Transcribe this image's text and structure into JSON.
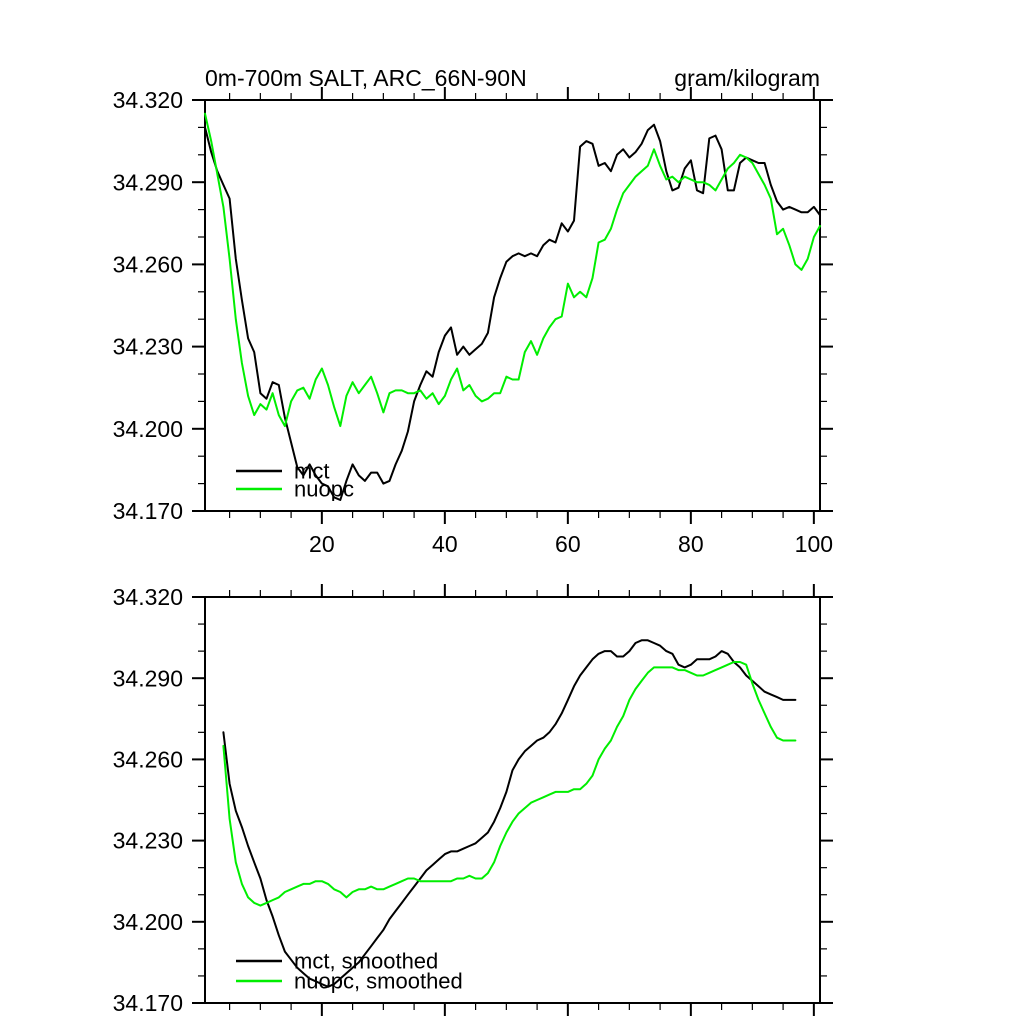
{
  "figure": {
    "background": "#ffffff",
    "accent_green": "#00ee00",
    "accent_black": "#000000"
  },
  "chart_data": [
    {
      "type": "line",
      "title": "0m-700m SALT, ARC_66N-90N",
      "units": "gram/kilogram",
      "xlabel": "",
      "ylabel": "",
      "xlim": [
        1,
        101
      ],
      "ylim": [
        34.17,
        34.32
      ],
      "grid": false,
      "legend_position": "lower-left-inside",
      "x_major_ticks": [
        20,
        40,
        60,
        80,
        100
      ],
      "x_tick_labels": [
        "20",
        "40",
        "60",
        "80",
        "100"
      ],
      "x_minor_step": 5,
      "y_major_ticks": [
        34.17,
        34.2,
        34.23,
        34.26,
        34.29,
        34.32
      ],
      "y_tick_labels": [
        "34.170",
        "34.200",
        "34.230",
        "34.260",
        "34.290",
        "34.320"
      ],
      "y_minor_step": 0.01,
      "show_x_labels": true,
      "legend": [
        {
          "name": "mct",
          "color": "#000000"
        },
        {
          "name": "nuopc",
          "color": "#00ee00"
        }
      ],
      "series": [
        {
          "name": "mct",
          "color": "#000000",
          "x_start": 1,
          "x_step": 1,
          "values": [
            34.31,
            34.301,
            34.294,
            34.289,
            34.284,
            34.262,
            34.247,
            34.233,
            34.228,
            34.213,
            34.211,
            34.217,
            34.216,
            34.204,
            34.195,
            34.186,
            34.183,
            34.187,
            34.183,
            34.18,
            34.179,
            34.175,
            34.174,
            34.181,
            34.187,
            34.183,
            34.181,
            34.184,
            34.184,
            34.18,
            34.181,
            34.187,
            34.192,
            34.199,
            34.21,
            34.216,
            34.221,
            34.219,
            34.228,
            34.234,
            34.237,
            34.227,
            34.23,
            34.227,
            34.229,
            34.231,
            34.235,
            34.248,
            34.255,
            34.261,
            34.263,
            34.264,
            34.263,
            34.264,
            34.263,
            34.267,
            34.269,
            34.268,
            34.275,
            34.272,
            34.276,
            34.303,
            34.305,
            34.304,
            34.296,
            34.297,
            34.294,
            34.3,
            34.302,
            34.299,
            34.301,
            34.304,
            34.309,
            34.311,
            34.305,
            34.294,
            34.287,
            34.288,
            34.295,
            34.298,
            34.287,
            34.286,
            34.306,
            34.307,
            34.302,
            34.287,
            34.287,
            34.297,
            34.299,
            34.298,
            34.297,
            34.297,
            34.289,
            34.283,
            34.28,
            34.281,
            34.28,
            34.279,
            34.279,
            34.281,
            34.278
          ]
        },
        {
          "name": "nuopc",
          "color": "#00ee00",
          "x_start": 1,
          "x_step": 1,
          "values": [
            34.315,
            34.305,
            34.293,
            34.281,
            34.262,
            34.24,
            34.224,
            34.212,
            34.205,
            34.209,
            34.207,
            34.213,
            34.205,
            34.201,
            34.21,
            34.214,
            34.215,
            34.211,
            34.218,
            34.222,
            34.216,
            34.208,
            34.201,
            34.212,
            34.217,
            34.213,
            34.216,
            34.219,
            34.213,
            34.206,
            34.213,
            34.214,
            34.214,
            34.213,
            34.213,
            34.214,
            34.211,
            34.213,
            34.209,
            34.212,
            34.218,
            34.222,
            34.214,
            34.216,
            34.212,
            34.21,
            34.211,
            34.213,
            34.213,
            34.219,
            34.218,
            34.218,
            34.228,
            34.232,
            34.227,
            34.233,
            34.237,
            34.24,
            34.241,
            34.253,
            34.248,
            34.25,
            34.248,
            34.255,
            34.268,
            34.269,
            34.273,
            34.28,
            34.286,
            34.289,
            34.292,
            34.294,
            34.296,
            34.302,
            34.296,
            34.291,
            34.292,
            34.29,
            34.292,
            34.291,
            34.29,
            34.29,
            34.289,
            34.287,
            34.291,
            34.295,
            34.297,
            34.3,
            34.299,
            34.297,
            34.293,
            34.289,
            34.284,
            34.271,
            34.273,
            34.267,
            34.26,
            34.258,
            34.262,
            34.27,
            34.274
          ]
        }
      ]
    },
    {
      "type": "line",
      "title": "",
      "units": "",
      "xlabel": "",
      "ylabel": "",
      "xlim": [
        1,
        101
      ],
      "ylim": [
        34.17,
        34.32
      ],
      "grid": false,
      "legend_position": "lower-left-inside",
      "x_major_ticks": [
        20,
        40,
        60,
        80,
        100
      ],
      "x_tick_labels": [],
      "x_minor_step": 5,
      "y_major_ticks": [
        34.17,
        34.2,
        34.23,
        34.26,
        34.29,
        34.32
      ],
      "y_tick_labels": [
        "34.170",
        "34.200",
        "34.230",
        "34.260",
        "34.290",
        "34.320"
      ],
      "y_minor_step": 0.01,
      "show_x_labels": false,
      "legend": [
        {
          "name": "mct, smoothed",
          "color": "#000000"
        },
        {
          "name": "nuopc, smoothed",
          "color": "#00ee00"
        }
      ],
      "series": [
        {
          "name": "mct, smoothed",
          "color": "#000000",
          "x_start": 4,
          "x_step": 1,
          "values": [
            34.27,
            34.251,
            34.241,
            34.235,
            34.228,
            34.222,
            34.216,
            34.208,
            34.202,
            34.195,
            34.189,
            34.186,
            34.183,
            34.181,
            34.179,
            34.178,
            34.177,
            34.176,
            34.177,
            34.179,
            34.181,
            34.183,
            34.185,
            34.188,
            34.191,
            34.194,
            34.197,
            34.201,
            34.204,
            34.207,
            34.21,
            34.213,
            34.216,
            34.219,
            34.221,
            34.223,
            34.225,
            34.226,
            34.226,
            34.227,
            34.228,
            34.229,
            34.231,
            34.233,
            34.237,
            34.242,
            34.248,
            34.256,
            34.26,
            34.263,
            34.265,
            34.267,
            34.268,
            34.27,
            34.273,
            34.277,
            34.282,
            34.287,
            34.291,
            34.294,
            34.297,
            34.299,
            34.3,
            34.3,
            34.298,
            34.298,
            34.3,
            34.303,
            34.304,
            34.304,
            34.303,
            34.302,
            34.3,
            34.299,
            34.295,
            34.294,
            34.295,
            34.297,
            34.297,
            34.297,
            34.298,
            34.3,
            34.299,
            34.296,
            34.294,
            34.291,
            34.289,
            34.287,
            34.285,
            34.284,
            34.283,
            34.282,
            34.282,
            34.282
          ]
        },
        {
          "name": "nuopc, smoothed",
          "color": "#00ee00",
          "x_start": 4,
          "x_step": 1,
          "values": [
            34.265,
            34.238,
            34.222,
            34.214,
            34.209,
            34.207,
            34.206,
            34.207,
            34.208,
            34.209,
            34.211,
            34.212,
            34.213,
            34.214,
            34.214,
            34.215,
            34.215,
            34.214,
            34.212,
            34.211,
            34.209,
            34.211,
            34.212,
            34.212,
            34.213,
            34.212,
            34.212,
            34.213,
            34.214,
            34.215,
            34.216,
            34.216,
            34.215,
            34.215,
            34.215,
            34.215,
            34.215,
            34.215,
            34.216,
            34.216,
            34.217,
            34.216,
            34.216,
            34.218,
            34.222,
            34.228,
            34.233,
            34.237,
            34.24,
            34.242,
            34.244,
            34.245,
            34.246,
            34.247,
            34.248,
            34.248,
            34.248,
            34.249,
            34.249,
            34.251,
            34.254,
            34.26,
            34.264,
            34.267,
            34.272,
            34.276,
            34.282,
            34.286,
            34.289,
            34.292,
            34.294,
            34.294,
            34.294,
            34.294,
            34.293,
            34.293,
            34.292,
            34.291,
            34.291,
            34.292,
            34.293,
            34.294,
            34.295,
            34.296,
            34.296,
            34.295,
            34.288,
            34.282,
            34.277,
            34.272,
            34.268,
            34.267,
            34.267,
            34.267
          ]
        }
      ]
    }
  ]
}
